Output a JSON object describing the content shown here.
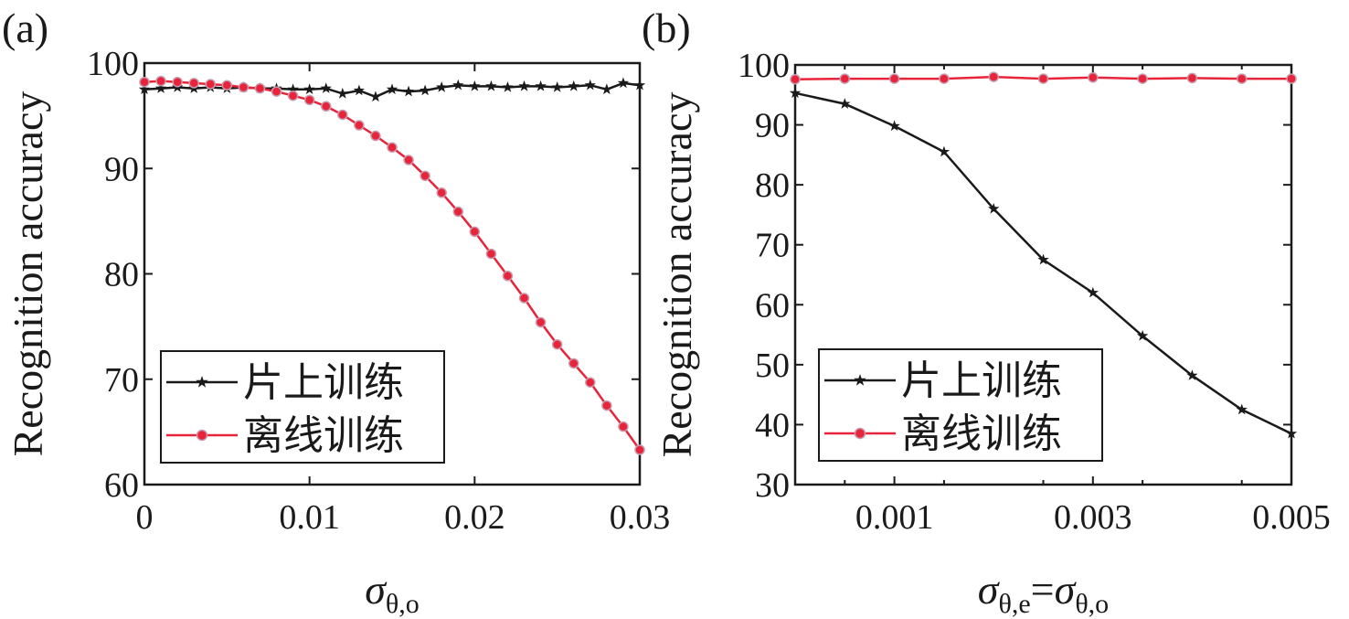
{
  "chart_data": [
    {
      "panel_label": "(a)",
      "type": "line",
      "xlabel_main": "σ",
      "xlabel_sub": "θ,o",
      "ylabel": "Recognition accuracy",
      "xlim": [
        0,
        0.03
      ],
      "ylim": [
        60,
        100
      ],
      "x_ticks": [
        {
          "value": 0,
          "label": "0"
        },
        {
          "value": 0.01,
          "label": "0.01"
        },
        {
          "value": 0.02,
          "label": "0.02"
        },
        {
          "value": 0.03,
          "label": "0.03"
        }
      ],
      "y_ticks": [
        {
          "value": 60,
          "label": "60"
        },
        {
          "value": 70,
          "label": "70"
        },
        {
          "value": 80,
          "label": "80"
        },
        {
          "value": 90,
          "label": "90"
        },
        {
          "value": 100,
          "label": "100"
        }
      ],
      "legend_position": "bottom-left",
      "series": [
        {
          "name": "片上训练",
          "color": "#1a1a1a",
          "marker": "star",
          "x": [
            0,
            0.001,
            0.002,
            0.003,
            0.004,
            0.005,
            0.006,
            0.007,
            0.008,
            0.009,
            0.01,
            0.011,
            0.012,
            0.013,
            0.014,
            0.015,
            0.016,
            0.017,
            0.018,
            0.019,
            0.02,
            0.021,
            0.022,
            0.023,
            0.024,
            0.025,
            0.026,
            0.027,
            0.028,
            0.029,
            0.03
          ],
          "y": [
            97.5,
            97.6,
            97.7,
            97.6,
            97.7,
            97.6,
            97.7,
            97.6,
            97.6,
            97.5,
            97.5,
            97.6,
            97.1,
            97.4,
            96.8,
            97.5,
            97.3,
            97.4,
            97.7,
            97.9,
            97.8,
            97.8,
            97.7,
            97.8,
            97.8,
            97.7,
            97.8,
            97.9,
            97.5,
            98.1,
            97.9
          ]
        },
        {
          "name": "离线训练",
          "color": "#e8243a",
          "marker": "circle",
          "x": [
            0,
            0.001,
            0.002,
            0.003,
            0.004,
            0.005,
            0.006,
            0.007,
            0.008,
            0.009,
            0.01,
            0.011,
            0.012,
            0.013,
            0.014,
            0.015,
            0.016,
            0.017,
            0.018,
            0.019,
            0.02,
            0.021,
            0.022,
            0.023,
            0.024,
            0.025,
            0.026,
            0.027,
            0.028,
            0.029,
            0.03
          ],
          "y": [
            98.2,
            98.3,
            98.2,
            98.1,
            98.0,
            97.9,
            97.7,
            97.6,
            97.3,
            96.9,
            96.5,
            95.9,
            95.1,
            94.1,
            93.1,
            92.0,
            90.8,
            89.3,
            87.7,
            85.9,
            84.0,
            81.9,
            79.8,
            77.7,
            75.4,
            73.3,
            71.5,
            69.7,
            67.5,
            65.5,
            63.3
          ]
        }
      ]
    },
    {
      "panel_label": "(b)",
      "type": "line",
      "xlabel_main": "σ",
      "xlabel_sub": "θ,e",
      "xlabel_mid": "=",
      "xlabel_main2": "σ",
      "xlabel_sub2": "θ,o",
      "ylabel": "Recognition accuracy",
      "xlim": [
        0,
        0.005
      ],
      "ylim": [
        30,
        100
      ],
      "x_ticks": [
        {
          "value": 0.001,
          "label": "0.001"
        },
        {
          "value": 0.003,
          "label": "0.003"
        },
        {
          "value": 0.005,
          "label": "0.005"
        }
      ],
      "x_minor_ticks": [
        0.0005,
        0.0015,
        0.0025,
        0.0035,
        0.0045
      ],
      "y_ticks": [
        {
          "value": 30,
          "label": "30"
        },
        {
          "value": 40,
          "label": "40"
        },
        {
          "value": 50,
          "label": "50"
        },
        {
          "value": 60,
          "label": "60"
        },
        {
          "value": 70,
          "label": "70"
        },
        {
          "value": 80,
          "label": "80"
        },
        {
          "value": 90,
          "label": "90"
        },
        {
          "value": 100,
          "label": "100"
        }
      ],
      "legend_position": "bottom-left",
      "series": [
        {
          "name": "片上训练",
          "color": "#1a1a1a",
          "marker": "star",
          "x": [
            0,
            0.0005,
            0.001,
            0.0015,
            0.002,
            0.0025,
            0.003,
            0.0035,
            0.004,
            0.0045,
            0.005
          ],
          "y": [
            95.3,
            93.5,
            89.8,
            85.5,
            76.0,
            67.5,
            62.0,
            54.8,
            48.2,
            42.5,
            38.5
          ]
        },
        {
          "name": "离线训练",
          "color": "#e8243a",
          "marker": "circle",
          "x": [
            0,
            0.0005,
            0.001,
            0.0015,
            0.002,
            0.0025,
            0.003,
            0.0035,
            0.004,
            0.0045,
            0.005
          ],
          "y": [
            97.6,
            97.7,
            97.7,
            97.7,
            98.0,
            97.7,
            97.9,
            97.7,
            97.8,
            97.7,
            97.7
          ]
        }
      ]
    }
  ]
}
